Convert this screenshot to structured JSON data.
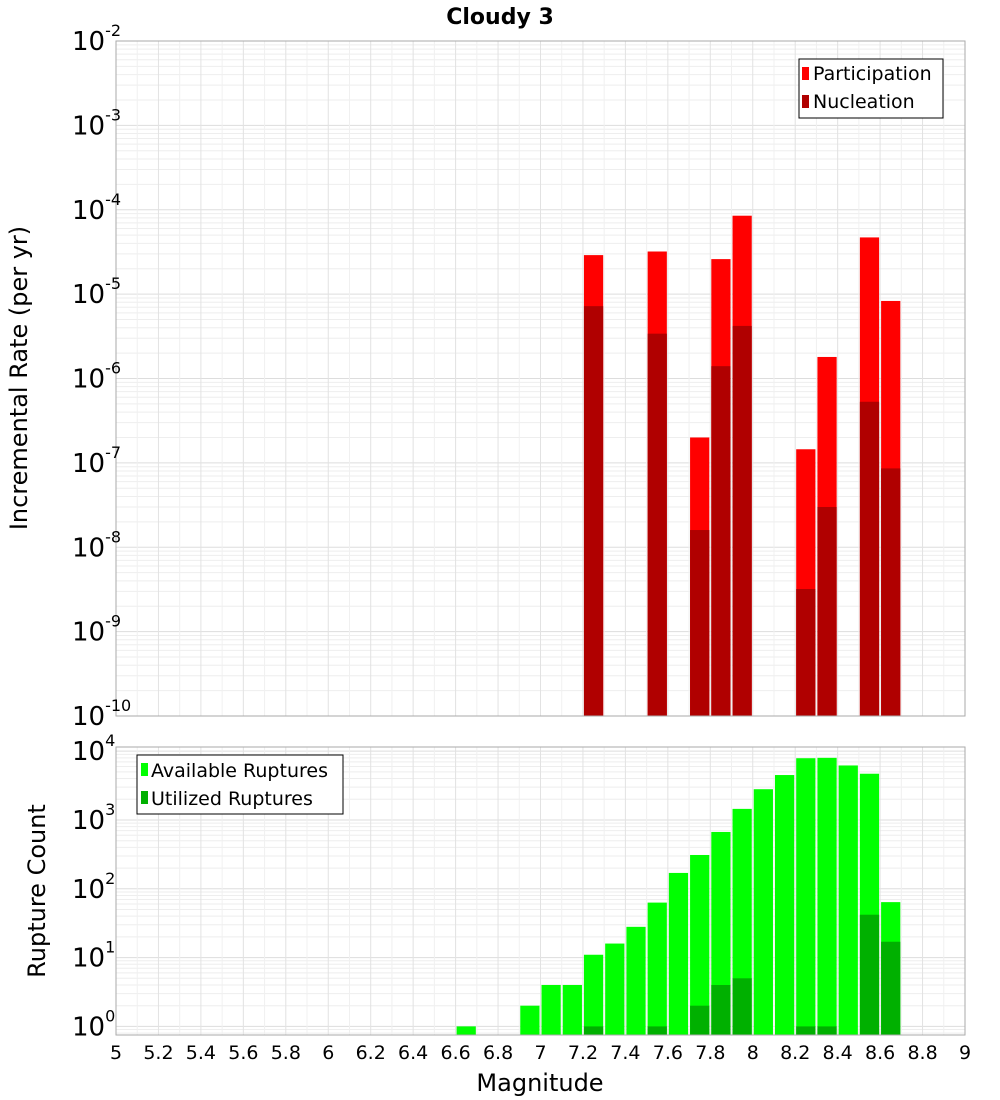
{
  "title": "Cloudy 3",
  "colors": {
    "participation": "#ff0000",
    "nucleation": "#b00000",
    "available": "#00ff00",
    "utilized": "#00b000"
  },
  "chart_data": [
    {
      "type": "bar",
      "title": "Cloudy 3",
      "xlabel": "",
      "ylabel": "Incremental Rate (per yr)",
      "yscale": "log",
      "xlim": [
        5,
        9
      ],
      "ylim": [
        1e-10,
        0.01
      ],
      "y_ticks": [
        "10^-10",
        "10^-9",
        "10^-8",
        "10^-7",
        "10^-6",
        "10^-5",
        "10^-4",
        "10^-3",
        "10^-2"
      ],
      "grid": true,
      "legend": "top-right",
      "series": [
        {
          "name": "Participation",
          "color": "#ff0000",
          "x": [
            7.25,
            7.55,
            7.75,
            7.85,
            7.95,
            8.25,
            8.35,
            8.55,
            8.65
          ],
          "values": [
            2.9e-05,
            3.2e-05,
            2e-07,
            2.6e-05,
            8.5e-05,
            1.45e-07,
            1.8e-06,
            4.7e-05,
            8.3e-06
          ]
        },
        {
          "name": "Nucleation",
          "color": "#b00000",
          "x": [
            7.25,
            7.55,
            7.75,
            7.85,
            7.95,
            8.25,
            8.35,
            8.55,
            8.65
          ],
          "values": [
            7.2e-06,
            3.4e-06,
            1.6e-08,
            1.4e-06,
            4.2e-06,
            3.2e-09,
            3e-08,
            5.3e-07,
            8.6e-08
          ]
        }
      ]
    },
    {
      "type": "bar",
      "title": "",
      "xlabel": "Magnitude",
      "ylabel": "Rupture Count",
      "yscale": "log",
      "xlim": [
        5,
        9
      ],
      "ylim": [
        0.75,
        11500
      ],
      "x_ticks": [
        "5",
        "5.2",
        "5.4",
        "5.6",
        "5.8",
        "6",
        "6.2",
        "6.4",
        "6.6",
        "6.8",
        "7",
        "7.2",
        "7.4",
        "7.6",
        "7.8",
        "8",
        "8.2",
        "8.4",
        "8.6",
        "8.8",
        "9"
      ],
      "y_ticks": [
        "10^0",
        "10^1",
        "10^2",
        "10^3",
        "10^4"
      ],
      "grid": true,
      "legend": "top-left",
      "series": [
        {
          "name": "Available Ruptures",
          "color": "#00ff00",
          "x": [
            6.65,
            6.95,
            7.05,
            7.15,
            7.25,
            7.35,
            7.45,
            7.55,
            7.65,
            7.75,
            7.85,
            7.95,
            8.05,
            8.15,
            8.25,
            8.35,
            8.45,
            8.55,
            8.65
          ],
          "values": [
            1,
            2,
            4,
            4,
            11,
            16,
            28,
            63,
            170,
            310,
            670,
            1450,
            2800,
            4500,
            7900,
            8000,
            6200,
            4700,
            64
          ]
        },
        {
          "name": "Utilized Ruptures",
          "color": "#00b000",
          "x": [
            7.25,
            7.55,
            7.75,
            7.85,
            7.95,
            8.25,
            8.35,
            8.55,
            8.65
          ],
          "values": [
            1,
            1,
            2,
            4,
            5,
            1,
            1,
            42,
            17
          ]
        }
      ]
    }
  ]
}
